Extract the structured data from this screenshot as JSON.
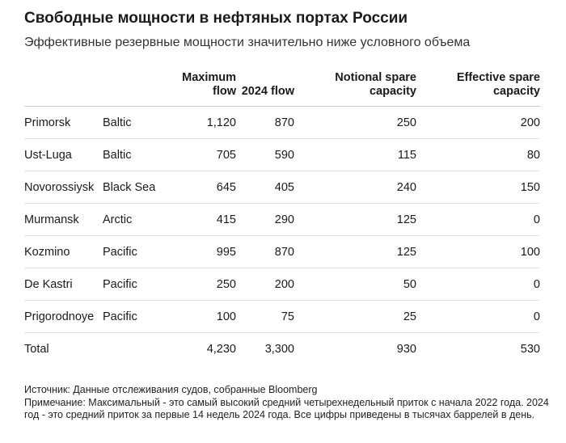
{
  "header": {
    "title": "Свободные мощности в нефтяных портах России",
    "subtitle": "Эффективные резервные мощности значительно ниже условного объема"
  },
  "table": {
    "columns": [
      "Maximum flow",
      "2024 flow",
      "Notional spare capacity",
      "Effective spare capacity"
    ],
    "rows": [
      [
        "Primorsk",
        "Baltic",
        "1,120",
        "870",
        "250",
        "200"
      ],
      [
        "Ust-Luga",
        "Baltic",
        "705",
        "590",
        "115",
        "80"
      ],
      [
        "Novorossiysk",
        "Black Sea",
        "645",
        "405",
        "240",
        "150"
      ],
      [
        "Murmansk",
        "Arctic",
        "415",
        "290",
        "125",
        "0"
      ],
      [
        "Kozmino",
        "Pacific",
        "995",
        "870",
        "125",
        "100"
      ],
      [
        "De Kastri",
        "Pacific",
        "250",
        "200",
        "50",
        "0"
      ],
      [
        "Prigorodnoye",
        "Pacific",
        "100",
        "75",
        "25",
        "0"
      ]
    ],
    "total": [
      "Total",
      "4,230",
      "3,300",
      "930",
      "530"
    ]
  },
  "footer": {
    "source": "Источник: Данные отслеживания судов, собранные Bloomberg",
    "note": "Примечание: Максимальный - это самый высокий средний четырехнедельный приток с начала 2022 года. 2024 год - это средний приток за первые 14 недель 2024 года. Все цифры приведены в тысячах баррелей в день."
  }
}
